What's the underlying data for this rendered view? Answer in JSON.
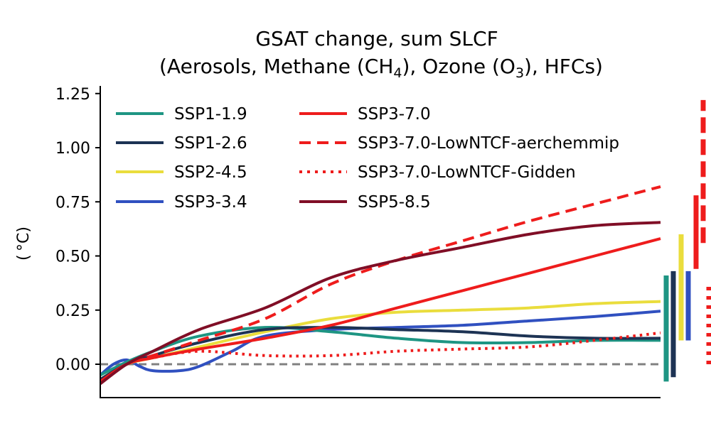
{
  "chart_data": {
    "type": "line",
    "title_line1": "GSAT change, sum SLCF",
    "title_line2_parts": {
      "a": "(Aerosols, Methane (CH",
      "ch4_sub": "4",
      "b": "), Ozone (O",
      "o3_sub": "3",
      "c": "), HFCs)"
    },
    "ylabel": "( °C)",
    "xlabel": "",
    "x_range": [
      2015,
      2100
    ],
    "ylim": [
      -0.15,
      1.28
    ],
    "yticks": [
      0.0,
      0.25,
      0.5,
      0.75,
      1.0,
      1.25
    ],
    "ytick_labels": [
      "0.00",
      "0.25",
      "0.50",
      "0.75",
      "1.00",
      "1.25"
    ],
    "x_ticks_shown": false,
    "zero_line": {
      "y": 0,
      "color": "#808080",
      "style": "dashed"
    },
    "legend_position": "top-left",
    "series": [
      {
        "name": "SSP1-1.9",
        "color": "#1e9583",
        "style": "solid",
        "x": [
          2015,
          2019,
          2023,
          2030,
          2040,
          2050,
          2060,
          2070,
          2080,
          2090,
          2100
        ],
        "y": [
          -0.05,
          0.01,
          0.06,
          0.13,
          0.17,
          0.15,
          0.12,
          0.1,
          0.1,
          0.11,
          0.11
        ]
      },
      {
        "name": "SSP1-2.6",
        "color": "#1d3354",
        "style": "solid",
        "x": [
          2015,
          2019,
          2023,
          2030,
          2040,
          2050,
          2060,
          2070,
          2080,
          2090,
          2100
        ],
        "y": [
          -0.07,
          0.0,
          0.04,
          0.1,
          0.16,
          0.17,
          0.16,
          0.15,
          0.13,
          0.12,
          0.12
        ]
      },
      {
        "name": "SSP2-4.5",
        "color": "#eadd3d",
        "style": "solid",
        "x": [
          2015,
          2019,
          2023,
          2030,
          2040,
          2050,
          2060,
          2070,
          2080,
          2090,
          2100
        ],
        "y": [
          -0.07,
          0.0,
          0.03,
          0.08,
          0.15,
          0.21,
          0.24,
          0.25,
          0.26,
          0.28,
          0.29
        ]
      },
      {
        "name": "SSP3-3.4",
        "color": "#3050c0",
        "style": "solid",
        "x": [
          2015,
          2017,
          2019,
          2021,
          2023,
          2027,
          2030,
          2035,
          2040,
          2050,
          2060,
          2070,
          2080,
          2090,
          2100
        ],
        "y": [
          -0.05,
          0.0,
          0.02,
          -0.01,
          -0.03,
          -0.03,
          -0.01,
          0.06,
          0.13,
          0.16,
          0.17,
          0.18,
          0.2,
          0.22,
          0.245
        ]
      },
      {
        "name": "SSP3-7.0",
        "color": "#ee1c1c",
        "style": "solid",
        "x": [
          2015,
          2019,
          2023,
          2030,
          2040,
          2050,
          2060,
          2070,
          2080,
          2090,
          2100
        ],
        "y": [
          -0.08,
          0.0,
          0.03,
          0.07,
          0.12,
          0.18,
          0.26,
          0.34,
          0.42,
          0.5,
          0.58
        ]
      },
      {
        "name": "SSP3-7.0-LowNTCF-aerchemmip",
        "color": "#ee1c1c",
        "style": "dashed",
        "x": [
          2015,
          2019,
          2023,
          2030,
          2040,
          2050,
          2060,
          2070,
          2080,
          2090,
          2100
        ],
        "y": [
          -0.08,
          0.0,
          0.04,
          0.11,
          0.21,
          0.37,
          0.48,
          0.57,
          0.66,
          0.74,
          0.82
        ]
      },
      {
        "name": "SSP3-7.0-LowNTCF-Gidden",
        "color": "#ee1c1c",
        "style": "dotted",
        "x": [
          2015,
          2019,
          2023,
          2030,
          2040,
          2050,
          2060,
          2070,
          2080,
          2090,
          2100
        ],
        "y": [
          -0.08,
          0.0,
          0.03,
          0.06,
          0.04,
          0.04,
          0.06,
          0.07,
          0.08,
          0.11,
          0.145
        ]
      },
      {
        "name": "SSP5-8.5",
        "color": "#800e26",
        "style": "solid",
        "x": [
          2015,
          2019,
          2023,
          2030,
          2040,
          2050,
          2060,
          2070,
          2080,
          2090,
          2100
        ],
        "y": [
          -0.09,
          0.0,
          0.06,
          0.16,
          0.26,
          0.4,
          0.48,
          0.54,
          0.6,
          0.64,
          0.655
        ]
      }
    ],
    "uncertainty_bars_2100": [
      {
        "series": "SSP1-1.9",
        "color": "#1e9583",
        "style": "solid",
        "low": -0.08,
        "high": 0.41
      },
      {
        "series": "SSP1-2.6",
        "color": "#1d3354",
        "style": "solid",
        "low": -0.06,
        "high": 0.43
      },
      {
        "series": "SSP2-4.5",
        "color": "#eadd3d",
        "style": "solid",
        "low": 0.11,
        "high": 0.6
      },
      {
        "series": "SSP3-3.4",
        "color": "#3050c0",
        "style": "solid",
        "low": 0.11,
        "high": 0.43
      },
      {
        "series": "SSP3-7.0",
        "color": "#ee1c1c",
        "style": "solid",
        "low": 0.44,
        "high": 0.78
      },
      {
        "series": "SSP3-7.0-LowNTCF-aerchemmip",
        "color": "#ee1c1c",
        "style": "dashed",
        "low": 0.56,
        "high": 1.22
      },
      {
        "series": "SSP3-7.0-LowNTCF-Gidden",
        "color": "#ee1c1c",
        "style": "dotted",
        "low": 0.0,
        "high": 0.38
      }
    ],
    "legend_columns": [
      [
        "SSP1-1.9",
        "SSP1-2.6",
        "SSP2-4.5",
        "SSP3-3.4"
      ],
      [
        "SSP3-7.0",
        "SSP3-7.0-LowNTCF-aerchemmip",
        "SSP3-7.0-LowNTCF-Gidden",
        "SSP5-8.5"
      ]
    ]
  }
}
